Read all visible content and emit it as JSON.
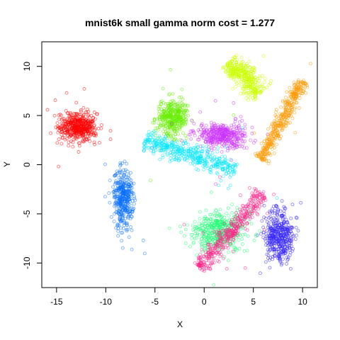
{
  "chart_data": {
    "type": "scatter",
    "title": "mnist6k small gamma norm cost = 1.277",
    "xlabel": "X",
    "ylabel": "Y",
    "xlim": [
      -16.5,
      11.5
    ],
    "ylim": [
      -12.5,
      12.5
    ],
    "x_ticks": [
      -15,
      -10,
      -5,
      0,
      5,
      10
    ],
    "x_tick_labels": [
      "-15",
      "-10",
      "-5",
      "0",
      "5",
      "10"
    ],
    "y_ticks": [
      -10,
      -5,
      0,
      5,
      10
    ],
    "y_tick_labels": [
      "-10",
      "-5",
      "0",
      "5",
      "10"
    ],
    "grid": false,
    "legend": "none",
    "point_style": "open-circle",
    "clusters": [
      {
        "color": "#ff0000",
        "shape": "ellipse",
        "center": [
          -12.8,
          3.8
        ],
        "spread": [
          1.7,
          1.2
        ],
        "angle": 0,
        "count": 480
      },
      {
        "color": "#0a6fff",
        "shape": "ellipse",
        "center": [
          -8.2,
          -3.5
        ],
        "spread": [
          0.9,
          2.8
        ],
        "angle": 0,
        "count": 400
      },
      {
        "color": "#66ee00",
        "shape": "ellipse",
        "center": [
          -3.2,
          4.8
        ],
        "spread": [
          1.4,
          1.6
        ],
        "angle": 0,
        "count": 400
      },
      {
        "color": "#cc33ff",
        "shape": "ellipse",
        "center": [
          1.8,
          3.0
        ],
        "spread": [
          2.2,
          1.1
        ],
        "angle": -5,
        "count": 420
      },
      {
        "color": "#00e5ff",
        "shape": "band",
        "from": [
          -6.0,
          2.5
        ],
        "to": [
          3.2,
          -0.5
        ],
        "width": 0.9,
        "count": 440
      },
      {
        "color": "#ccff00",
        "shape": "band",
        "from": [
          2.5,
          10.5
        ],
        "to": [
          5.8,
          7.2
        ],
        "width": 1.1,
        "count": 380
      },
      {
        "color": "#ff9900",
        "shape": "band",
        "from": [
          5.8,
          0.5
        ],
        "to": [
          10.0,
          8.5
        ],
        "width": 0.6,
        "count": 420
      },
      {
        "color": "#3322ff",
        "shape": "ellipse",
        "center": [
          7.6,
          -7.2
        ],
        "spread": [
          1.3,
          2.4
        ],
        "angle": 0,
        "count": 420
      },
      {
        "color": "#22ff77",
        "shape": "ellipse",
        "center": [
          1.5,
          -6.8
        ],
        "spread": [
          2.4,
          2.0
        ],
        "angle": 0,
        "count": 460
      },
      {
        "color": "#ff2288",
        "shape": "band",
        "from": [
          -0.5,
          -10.5
        ],
        "to": [
          6.0,
          -3.0
        ],
        "width": 0.8,
        "count": 420
      }
    ]
  }
}
